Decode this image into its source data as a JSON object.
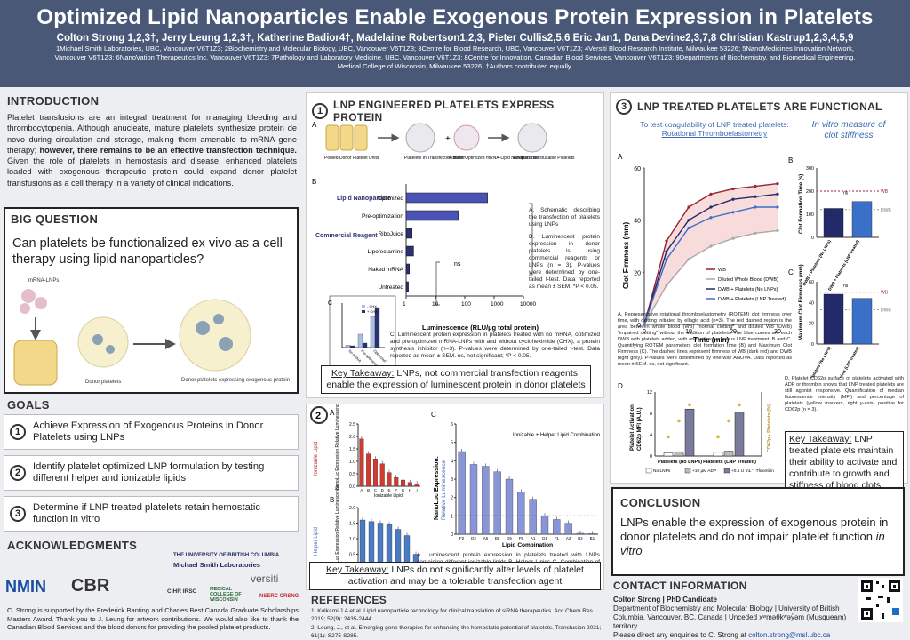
{
  "header": {
    "title": "Optimized Lipid Nanoparticles Enable Exogenous Protein Expression in Platelets",
    "authors": "Colton Strong 1,2,3†, Jerry Leung 1,2,3†, Katherine Badior4†, Madelaine Robertson1,2,3, Pieter Cullis2,5,6 Eric Jan1, Dana Devine2,3,7,8 Christian Kastrup1,2,3,4,5,9",
    "affiliations": "1Michael Smith Laboratories, UBC, Vancouver V6T1Z3; 2Biochemistry and Molecular Biology, UBC, Vancouver V6T1Z3; 3Centre for Blood Research, UBC, Vancouver V6T1Z3; 4Versiti Blood Research Institute, Milwaukee 53226; 5NanoMedicines Innovation Network, Vancouver V6T1Z3; 6NanoVation Therapeutics Inc, Vancouver V6T1Z3; 7Pathology and Laboratory Medicine, UBC, Vancouver V6T1Z3; 8Centre for Innovation, Canadian Blood Services, Vancouver V6T1Z3; 9Departments of Biochemistry, and Biomedical Engineering, Medical College of Wisconsin, Milwaukee 53226. †Authors contributed equally."
  },
  "intro": {
    "title": "INTRODUCTION",
    "text_a": "Platelet transfusions are an integral treatment for managing bleeding and thrombocytopenia. Although anucleate, mature platelets synthesize protein de novo during circulation and storage, making them amenable to mRNA gene therapy; ",
    "text_b": "however, there remains to be an effective transfection technique.",
    "text_c": " Given the role of platelets in hemostasis and disease, enhanced platelets loaded with exogenous therapeutic protein could expand donor platelet transfusions as a cell therapy in a variety of clinical indications."
  },
  "big_question": {
    "title": "BIG QUESTION",
    "text": "Can platelets be functionalized ex vivo as a cell therapy using lipid nanoparticles?",
    "lbl_lnps": "mRNA-LNPs",
    "lbl_donor": "Donor platelets",
    "lbl_expr": "Donor platelets expressing exogenous protein"
  },
  "goals": {
    "title": "GOALS",
    "items": [
      {
        "n": "1",
        "text": "Achieve Expression of Exogenous Proteins in Donor Platelets using LNPs"
      },
      {
        "n": "2",
        "text": "Identify platelet optimized LNP formulation by testing different helper and ionizable lipids"
      },
      {
        "n": "3",
        "text": "Determine if LNP treated platelets retain hemostatic function in vitro"
      }
    ]
  },
  "ack": {
    "title": "ACKNOWLEDGMENTS",
    "ubc1": "THE UNIVERSITY OF BRITISH COLUMBIA",
    "ubc2": "Michael Smith Laboratories",
    "versiti": "versiti",
    "nmin": "NMIN",
    "cbr": "CBR",
    "cihr": "CIHR IRSC",
    "mcw": "MEDICAL COLLEGE OF WISCONSIN",
    "nserc": "NSERC CRSNG",
    "text": "C. Strong is supported by the Frederick Banting and Charles Best Canada Graduate Scholarships Masters Award. Thank you to J. Leung for artwork contributions. We would also like to thank the Canadian Blood Services and the blood donors for providing the pooled platelet products."
  },
  "s1": {
    "num": "1",
    "title": "LNP ENGINEERED PLATELETS EXPRESS PROTEIN",
    "schematic": [
      "Pooled Donor Platelet Units",
      "Platelets In Transfection Buffer",
      "Platelet Optimized mRNA-Lipid Nanoparticles",
      "Modified Transfusable Platelets"
    ],
    "grp1": "Lipid Nanoparticle",
    "grp2": "Commercial Reagent",
    "xlabel": "Luminescence (RLU/µg total protein)",
    "ns": "ns",
    "capA": "A. Schematic describing the transfection of platelets using LNPs",
    "capB": "B. Luminescent protein expression in donor platelets is using commercial reagents or LNPs (n = 3). P-values were determined by one-tailed t-test. Data reported as mean ± SEM. *P < 0.05.",
    "capC": "C. Luminescent protein expression in platelets treated with no mRNA, optimized and pre-optimized mRNA-LNPs with and without cycloheximide (CHX), a protein synthesis inhibitor (n=3). P-values were determined by one-tailed t-test. Data reported as mean ± SEM. ns, not significant; *P < 0.05.",
    "kt_label": "Key Takeaway:",
    "kt": " LNPs, not commercial transfection reagents, enable the expression of luminescent protein in donor platelets",
    "c_ylabel": "Luminescence (RLU/µg total protein)",
    "c_legend": [
      "- CHX",
      "+ CHX"
    ],
    "c_cats": [
      "No mRNA",
      "Pre-optimization",
      "Optimized"
    ]
  },
  "s2": {
    "num": "2",
    "a_ylabel": "Ionizable Lipid",
    "b_ylabel": "Helper Lipid",
    "ab_ylabel": "NanoLuc Expression Relative Luminescence",
    "a_xlabel": "Ionizable Lipid",
    "b_xlabel": "Helper Lipid",
    "c_ylabel1": "NanoLuc Expression:",
    "c_ylabel2": "Relative Luminescence",
    "c_xlabel": "Lipid Combination",
    "c_legend": "Ionizable + Helper Lipid Combination",
    "cap": "A. Luminescent protein expression in platelets treated with LNPs containing different ionizable lipids B. Helper Lipids C. Combination of helper and ionizable lipids. P-values were determined by one-tailed t-test. Data reported as mean ± SEM. ns, not significant; *P < 0.05.",
    "kt_label": "Key Takeaway:",
    "kt": " LNPs do not significantly alter levels of platelet activation and may be a tolerable transfection agent"
  },
  "refs": {
    "title": "REFERENCES",
    "r1": "1. Kulkarni J.A et al. Lipid nanoparticle technology for clinical translation of siRNA therapeutics. Acc Chem Res 2019; 52(9): 2435-2444",
    "r2": "2. Leung, J., et al. Emerging gene therapies for enhancing the hemostatic potential of platelets. Transfusion 2021; 61(1): S275-S285."
  },
  "s3": {
    "num": "3",
    "title": "LNP TREATED PLATELETS ARE FUNCTIONAL",
    "sub1": "To test coagulability of LNP treated platelets:",
    "sub1b": "Rotational Thromboelastometry",
    "sub2": "In vitro measure of clot stiffness",
    "a_ylabel": "Clot Firmness (mm)",
    "a_xlabel": "Time (min)",
    "legend": [
      "WB",
      "Diluted Whole Blood (DWB)",
      "DWB + Platelets (No LNPs)",
      "DWB + Platelets (LNP Treated)"
    ],
    "b_ylabel": "Clot Formation Time (s)",
    "c_ylabel": "Maximum Clot Firmness (mm)",
    "bc_cats": [
      "DWB + Platelets (No LNPs)",
      "DWB + Platelets (LNP treated)"
    ],
    "dwb": "DWB",
    "wb": "WB",
    "ns": "ns",
    "capABC": "A. Representative rotational thromboelastometry (ROTEM) clot firmness over time, with clotting initiated by ellagic acid (n=3). The red dashed region is the area between whole blood (WB) \"normal clotting\" and diluted WB (DWB) \"impaired clotting\" without the addition of platelets. The blue curves are each DWB with platelets added, with and without previous LNP treatment. B and C. Quantifying ROTEM parameters clot formation time (B) and Maximum Clot Firmness (C). The dashed lines represent firmness of WB (dark red) and DWB (light grey). P-values were determined by one-way ANOVA. Data reported as mean ± SEM. ns, not significant.",
    "d_ylabel1": "Platelet Activation:",
    "d_ylabel2": "CD62p MFI (A.U.)",
    "d_ylabel_r": "CD62p+ Platelets (%)",
    "d_cats": [
      "Platelets (no LNPs)",
      "Platelets (LNP Treated)"
    ],
    "d_legend": [
      "No LNPs",
      "+10 µM ADP",
      "+0.1 U mL⁻¹ Thrombin"
    ],
    "capD": "D. Platelet CD62p surface of platelets activated with ADP or thrombin shows that LNP treated platelets are still agonist responsive. Quantification of median fluorescence intensity (MFI) and percentage of platelets (yellow markers, right y-axis) positive for CD62p (n = 3).",
    "kt_label": "Key Takeaway:",
    "kt": " LNP treated platelets maintain their ability to activate and contribute to growth and stiffness of blood clots"
  },
  "conclusion": {
    "title": "CONCLUSION",
    "text_a": "LNPs enable the expression of exogenous protein in donor platelets and do not impair platelet function ",
    "text_b": "in vitro"
  },
  "contact": {
    "title": "CONTACT INFORMATION",
    "name": "Colton Strong | PhD Candidate",
    "l1": "Department of Biochemistry and Molecular Biology | University of British Columbia, Vancouver, BC, Canada | Unceded xʷməθkʷəy̓əm (Musqueam) territory",
    "l2": "Please direct any enquiries to C. Strong at ",
    "email": "colton.strong@msl.ubc.ca"
  },
  "colors": {
    "header": "#4a5878",
    "bar_blue": "#4a52b5",
    "bar_navy": "#2c3172",
    "bar_red": "#d23a2f",
    "bar_lblue": "#4a7cc5",
    "wb": "#9a2130",
    "dwb": "#a9a9a9",
    "noLNP": "#232a6a",
    "lnp": "#3b70c9"
  },
  "chart_data": [
    {
      "type": "bar",
      "id": "1B",
      "orientation": "horizontal",
      "categories": [
        "Optimized",
        "Pre-optimization",
        "RiboJuice",
        "Lipofectamine",
        "Naked mRNA",
        "Untreated"
      ],
      "values": [
        600,
        60,
        1.6,
        1.8,
        1.3,
        1.2
      ],
      "xscale": "log",
      "xlim": [
        1,
        10000
      ],
      "xticks": [
        "1",
        "10",
        "100",
        "1000",
        "10000"
      ]
    },
    {
      "type": "bar",
      "id": "1C",
      "categories": [
        "No mRNA",
        "Pre-optimization",
        "Optimized"
      ],
      "series": [
        {
          "name": "- CHX",
          "values": [
            0.5,
            3,
            7
          ]
        },
        {
          "name": "+ CHX",
          "values": [
            0.4,
            1.0,
            9
          ]
        }
      ]
    },
    {
      "type": "bar",
      "id": "2A",
      "categories": [
        "A",
        "B",
        "C",
        "D",
        "E",
        "F",
        "G",
        "H",
        "I"
      ],
      "values": [
        1.9,
        1.3,
        1.1,
        0.9,
        0.55,
        0.35,
        0.25,
        0.15,
        0.1
      ],
      "ylim": [
        0,
        2.5
      ],
      "yticks": [
        "0.0",
        "0.5",
        "1.0",
        "1.5",
        "2.0",
        "2.5"
      ]
    },
    {
      "type": "bar",
      "id": "2B",
      "categories": [
        "1",
        "2",
        "3",
        "4",
        "5",
        "6",
        "7"
      ],
      "values": [
        1.6,
        1.55,
        1.5,
        1.45,
        1.3,
        1.1,
        0.5
      ],
      "ylim": [
        0,
        2.0
      ],
      "yticks": [
        "0.0",
        "0.5",
        "1.0",
        "1.5",
        "2.0"
      ]
    },
    {
      "type": "bar",
      "id": "2C",
      "categories": [
        "F2",
        "D2",
        "A5",
        "B5",
        "D5",
        "F5",
        "A1",
        "D1",
        "F1",
        "A2",
        "B2",
        "B1"
      ],
      "values": [
        4.5,
        3.8,
        3.7,
        3.4,
        3.0,
        2.3,
        1.9,
        1.0,
        0.8,
        0.6,
        0.05,
        0.03
      ],
      "ylim": [
        0,
        6
      ],
      "yticks": [
        "0",
        "1",
        "2",
        "3",
        "4",
        "5",
        "6"
      ]
    },
    {
      "type": "line",
      "id": "3A",
      "x": [
        0,
        5,
        10,
        15,
        20,
        25,
        30
      ],
      "series": [
        {
          "name": "WB",
          "values": [
            0,
            32,
            45,
            50,
            52,
            53,
            54
          ]
        },
        {
          "name": "Diluted Whole Blood (DWB)",
          "values": [
            0,
            15,
            25,
            30,
            33,
            35,
            36
          ]
        },
        {
          "name": "DWB + Platelets (No LNPs)",
          "values": [
            0,
            28,
            40,
            45,
            48,
            49,
            50
          ]
        },
        {
          "name": "DWB + Platelets (LNP Treated)",
          "values": [
            0,
            25,
            37,
            41,
            43,
            45,
            45
          ]
        }
      ],
      "ylim": [
        0,
        60
      ],
      "xlim": [
        0,
        30
      ],
      "yticks": [
        "0",
        "20",
        "40",
        "60"
      ],
      "xticks": [
        "0",
        "10",
        "20",
        "30"
      ]
    },
    {
      "type": "bar",
      "id": "3B",
      "categories": [
        "DWB + Platelets (No LNPs)",
        "DWB + Platelets (LNP treated)"
      ],
      "values": [
        125,
        155
      ],
      "ylim": [
        0,
        300
      ],
      "yticks": [
        "0",
        "100",
        "200",
        "300"
      ]
    },
    {
      "type": "bar",
      "id": "3C",
      "categories": [
        "DWB + Platelets (No LNPs)",
        "DWB + Platelets (LNP treated)"
      ],
      "values": [
        48,
        44
      ],
      "ylim": [
        0,
        60
      ],
      "yticks": [
        "0",
        "20",
        "40",
        "60"
      ]
    },
    {
      "type": "bar",
      "id": "3D",
      "categories": [
        "Platelets (no LNPs)",
        "Platelets (LNP Treated)"
      ],
      "series": [
        {
          "name": "No LNPs",
          "values": [
            0.6,
            0.7
          ]
        },
        {
          "name": "+10 µM ADP",
          "values": [
            0.8,
            0.9
          ]
        },
        {
          "name": "+0.1 U mL⁻¹ Thrombin",
          "values": [
            8.8,
            8.2
          ]
        }
      ],
      "ylim": [
        0,
        12
      ],
      "yticks": [
        "0",
        "4",
        "8",
        "12"
      ]
    }
  ]
}
